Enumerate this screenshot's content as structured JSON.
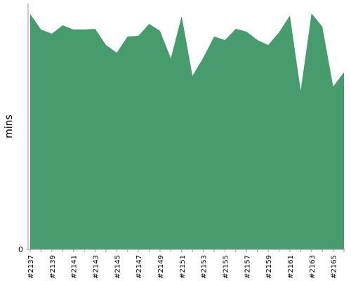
{
  "chart_data": {
    "type": "area",
    "y_label": "mins",
    "categories": [
      "#2137",
      null,
      "#2139",
      null,
      "#2141",
      null,
      "#2143",
      null,
      "#2145",
      null,
      "#2147",
      null,
      "#2149",
      null,
      "#2151",
      null,
      "#2153",
      null,
      "#2155",
      null,
      "#2157",
      null,
      "#2159",
      null,
      "#2161",
      null,
      "#2163",
      null,
      "#2165",
      null
    ],
    "values": [
      33.5,
      31.3,
      30.7,
      31.9,
      31.3,
      31.3,
      31.4,
      29.1,
      28.0,
      30.3,
      30.4,
      32.1,
      31.1,
      27.2,
      33.2,
      24.7,
      27.3,
      30.3,
      29.8,
      31.4,
      31.0,
      29.8,
      29.1,
      30.9,
      33.3,
      22.6,
      33.6,
      31.7,
      23.2,
      25.2
    ],
    "color": "#469c6d",
    "ylim": [
      0,
      35
    ],
    "yticks": [
      0
    ]
  }
}
